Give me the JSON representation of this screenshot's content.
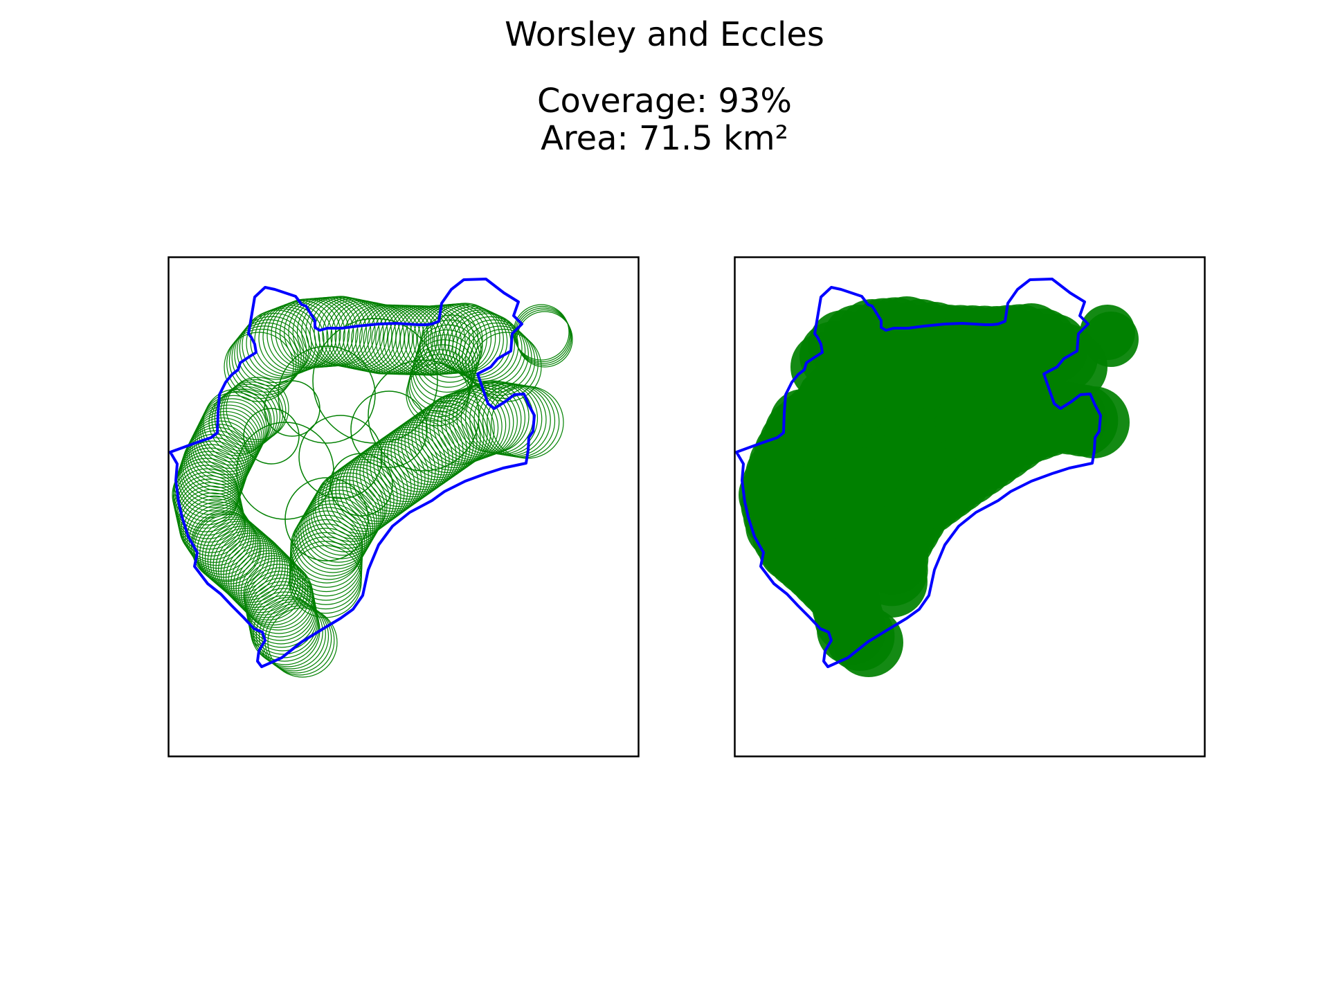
{
  "title": "Worsley and Eccles",
  "coverage_text": "Coverage: 93%",
  "area_text": "Area: 71.5 km²",
  "colors": {
    "boundary": "#0000ff",
    "coverage": "#008000",
    "frame": "#000000"
  },
  "chart_data": {
    "type": "map",
    "title": "Worsley and Eccles",
    "coverage_percent": 93,
    "area_km2": 71.5,
    "panels": [
      {
        "name": "coverage-circles-outline",
        "style": "circle outlines"
      },
      {
        "name": "coverage-filled",
        "style": "filled circles"
      }
    ]
  }
}
